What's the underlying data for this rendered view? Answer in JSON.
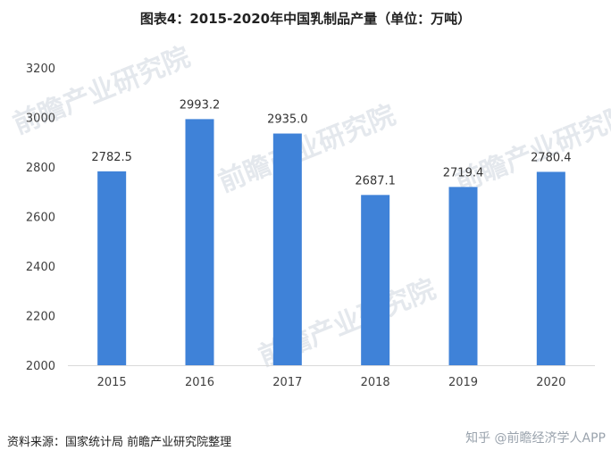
{
  "title": "图表4：2015-2020年中国乳制品产量（单位：万吨）",
  "source": "资料来源：国家统计局 前瞻产业研究院整理",
  "credit": "知乎 @前瞻经济学人APP",
  "watermark_text": "前瞻产业研究院",
  "colors": {
    "bar": "#3f82d8",
    "axis": "#d9d9d9"
  },
  "chart_data": {
    "type": "bar",
    "title": "图表4：2015-2020年中国乳制品产量（单位：万吨）",
    "xlabel": "",
    "ylabel": "",
    "categories": [
      "2015",
      "2016",
      "2017",
      "2018",
      "2019",
      "2020"
    ],
    "values": [
      2782.5,
      2993.2,
      2935.0,
      2687.1,
      2719.4,
      2780.4
    ],
    "value_labels": [
      "2782.5",
      "2993.2",
      "2935.0",
      "2687.1",
      "2719.4",
      "2780.4"
    ],
    "ylim": [
      2000,
      3200
    ],
    "yticks": [
      2000,
      2200,
      2400,
      2600,
      2800,
      3000,
      3200
    ],
    "grid": false,
    "legend": "none"
  }
}
